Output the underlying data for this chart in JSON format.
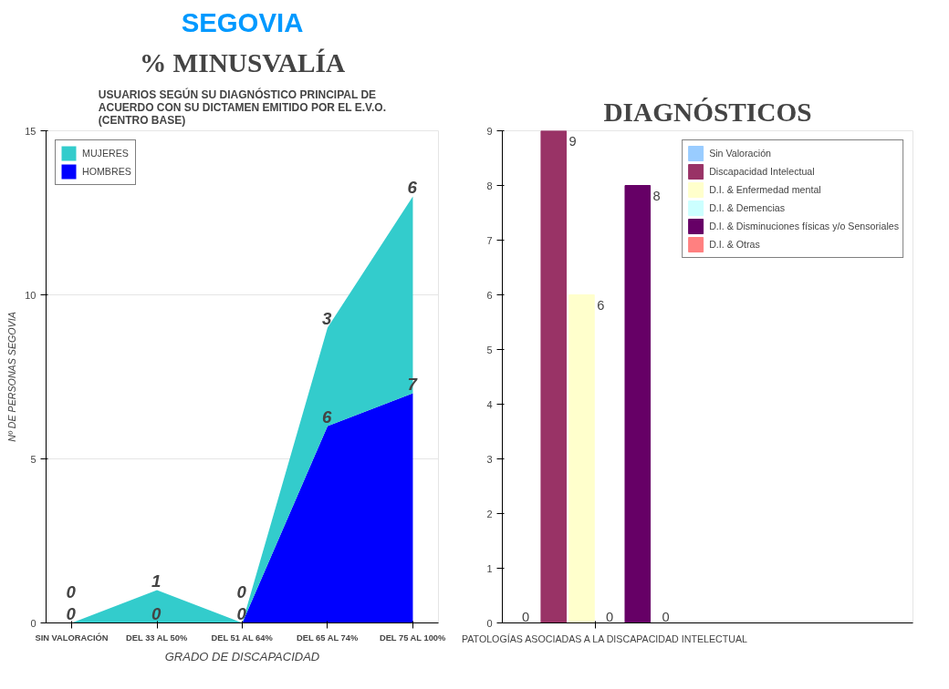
{
  "chart_data": [
    {
      "type": "area",
      "title": "% MINUSVALÍA",
      "subtitle": "USUARIOS SEGÚN SU DIAGNÓSTICO PRINCIPAL DE ACUERDO CON SU DICTAMEN EMITIDO POR EL E.V.O. (CENTRO BASE)",
      "annotations": [
        "SEGOVIA"
      ],
      "ylabel": "Nº DE PERSONAS SEGOVIA",
      "xlabel": "GRADO DE DISCAPACIDAD",
      "categories": [
        "SIN VALORACIÓN",
        "DEL 33 AL 50%",
        "DEL 51 AL 64%",
        "DEL 65 AL 74%",
        "DEL 75 AL 100%"
      ],
      "stacked": true,
      "ylim": [
        0,
        15
      ],
      "yticks": [
        0,
        5,
        10,
        15
      ],
      "grid": "y",
      "legend": "top left",
      "data_labels": true,
      "series": [
        {
          "name": "HOMBRES",
          "color": "#0000ff",
          "values": [
            0,
            0,
            0,
            6,
            7
          ]
        },
        {
          "name": "MUJERES",
          "color": "#33cccc",
          "values": [
            0,
            1,
            0,
            3,
            6
          ]
        }
      ]
    },
    {
      "type": "bar",
      "title": "DIAGNÓSTICOS",
      "categories": [
        "PATOLOGÍAS ASOCIADAS A LA DISCAPACIDAD INTELECTUAL"
      ],
      "ylim": [
        0,
        9
      ],
      "yticks": [
        0,
        1,
        2,
        3,
        4,
        5,
        6,
        7,
        8,
        9
      ],
      "grid": false,
      "legend": "top right",
      "data_labels": true,
      "series": [
        {
          "name": "Sin Valoración",
          "color": "#99ccff",
          "values": [
            0
          ]
        },
        {
          "name": "Discapacidad Intelectual",
          "color": "#993366",
          "values": [
            9
          ]
        },
        {
          "name": "D.I. & Enfermedad mental",
          "color": "#ffffcc",
          "values": [
            6
          ]
        },
        {
          "name": "D.I. & Demencias",
          "color": "#ccffff",
          "values": [
            0
          ]
        },
        {
          "name": "D.I. & Disminuciones físicas y/o Sensoriales",
          "color": "#660066",
          "values": [
            8
          ]
        },
        {
          "name": "D.I. & Otras",
          "color": "#ff8080",
          "values": [
            0
          ]
        }
      ]
    }
  ]
}
